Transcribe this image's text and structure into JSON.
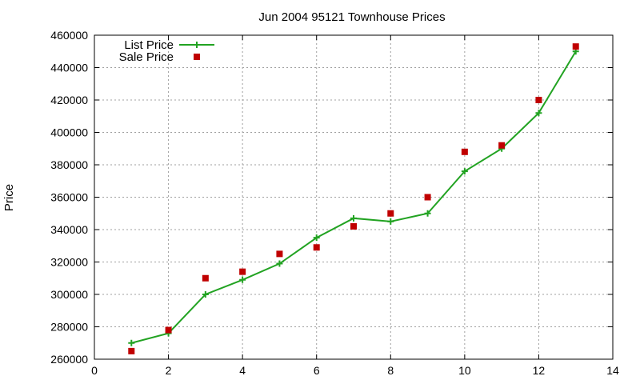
{
  "chart_data": {
    "type": "line",
    "title": "Jun 2004 95121 Townhouse Prices",
    "xlabel": "",
    "ylabel": "Price",
    "xlim": [
      0,
      14
    ],
    "ylim": [
      260000,
      460000
    ],
    "x_ticks": [
      "0",
      "2",
      "4",
      "6",
      "8",
      "10",
      "12",
      "14"
    ],
    "y_ticks": [
      "260000",
      "280000",
      "300000",
      "320000",
      "340000",
      "360000",
      "380000",
      "400000",
      "420000",
      "440000",
      "460000"
    ],
    "grid": true,
    "legend_position": "top-left",
    "x": [
      1,
      2,
      3,
      4,
      5,
      6,
      7,
      8,
      9,
      10,
      11,
      12,
      13
    ],
    "series": [
      {
        "name": "List Price",
        "style": "linespoints",
        "marker": "plus",
        "color": "#22a322",
        "values": [
          270000,
          276000,
          300000,
          309000,
          319000,
          335000,
          347000,
          345000,
          350000,
          376000,
          390000,
          412000,
          450000
        ]
      },
      {
        "name": "Sale Price",
        "style": "points",
        "marker": "square",
        "color": "#c00000",
        "values": [
          265000,
          278000,
          310000,
          314000,
          325000,
          329000,
          342000,
          350000,
          360000,
          388000,
          392000,
          420000,
          453000
        ]
      }
    ]
  }
}
